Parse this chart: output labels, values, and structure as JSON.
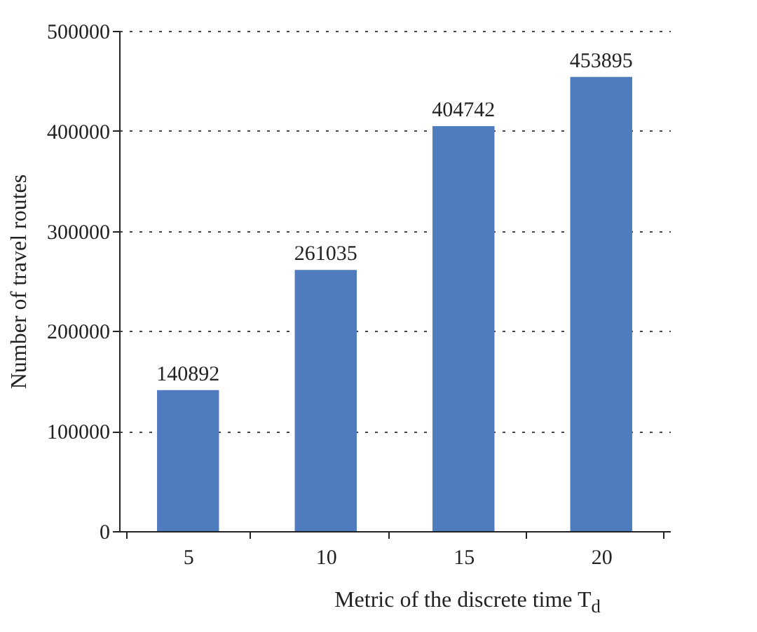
{
  "chart_data": {
    "type": "bar",
    "xlabel": "Metric of the discrete time T$_{d}$",
    "ylabel": "Number of travel routes",
    "categories": [
      "5",
      "10",
      "15",
      "20"
    ],
    "values": [
      140892,
      261035,
      404742,
      453895
    ],
    "color": "#4f7bbf",
    "ylim": [
      0,
      500000
    ],
    "yticks": [
      0,
      100000,
      200000,
      300000,
      400000,
      500000
    ],
    "grid": "y",
    "data_labels": true
  }
}
